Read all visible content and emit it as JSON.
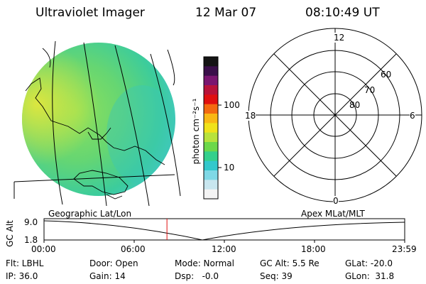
{
  "header": {
    "instrument": "Ultraviolet Imager",
    "date": "12 Mar 07",
    "time": "08:10:49 UT"
  },
  "colorbar": {
    "unit_label": "photon cm⁻²s⁻¹",
    "tick_100": "100",
    "tick_10": "10",
    "colors": [
      "#141414",
      "#3a0f4a",
      "#7a1670",
      "#b8133a",
      "#e01010",
      "#f36a10",
      "#f9b814",
      "#f0e21a",
      "#b8e23c",
      "#6cd84a",
      "#34d08c",
      "#33c8cc",
      "#7fd8e6",
      "#c8e6ef",
      "#f4f4f4"
    ]
  },
  "polar": {
    "labels": {
      "top": "12",
      "left": "18",
      "right": "6",
      "bottom": "0"
    },
    "lat_labels": [
      "60",
      "70",
      "80"
    ]
  },
  "timeline": {
    "left_label": "Geographic Lat/Lon",
    "right_label": "Apex MLat/MLT",
    "axis_label": "GC Alt",
    "y_top": "9.0",
    "y_bottom": "1.8",
    "ticks": [
      "00:00",
      "06:00",
      "12:00",
      "18:00",
      "23:59"
    ],
    "marker_time_hours": 8.18
  },
  "info": {
    "row1": [
      "Flt: LBHL",
      "Door: Open",
      "Mode: Normal",
      "GC Alt: 5.5 Re",
      "GLat: -20.0"
    ],
    "row2": [
      "IP: 36.0",
      "Gain: 14",
      "Dsp:   -0.0",
      "Seq: 39",
      "GLon:  31.8"
    ]
  }
}
